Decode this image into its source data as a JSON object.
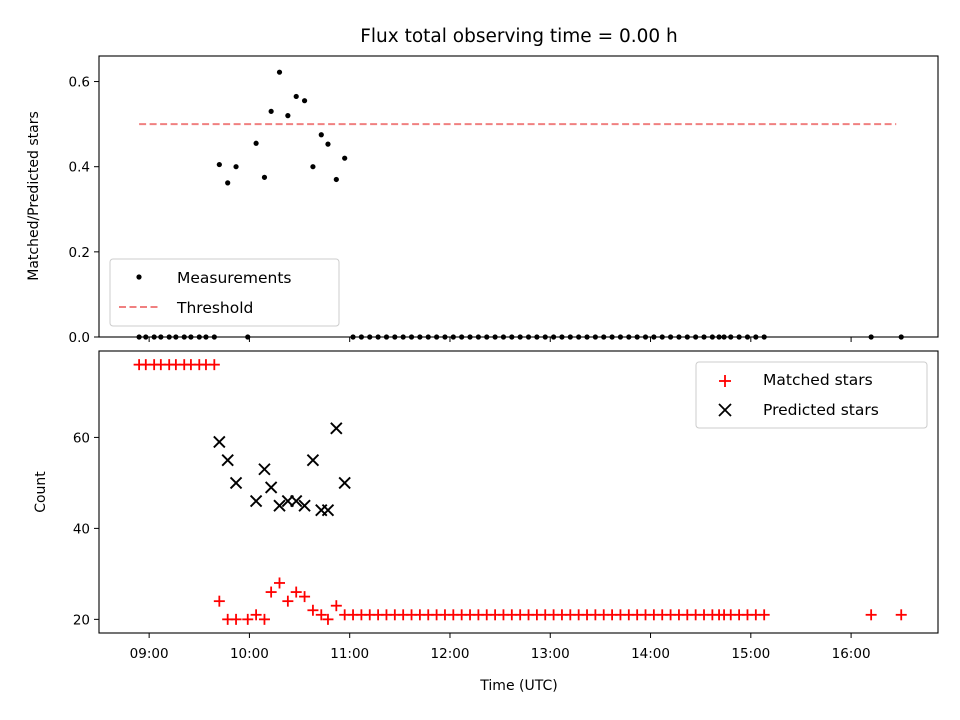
{
  "chart_data": [
    {
      "type": "scatter",
      "title": "Flux total observing time = 0.00 h",
      "xlabel": "",
      "ylabel": "Matched/Predicted stars",
      "xlim": [
        "08:30",
        "16:52"
      ],
      "ylim": [
        0,
        0.66
      ],
      "yticks": [
        "0.0",
        "0.2",
        "0.4",
        "0.6"
      ],
      "grid": false,
      "legend_position": "lower-left",
      "series": [
        {
          "name": "Measurements",
          "kind": "scatter",
          "color": "#000000",
          "points": [
            [
              "08:54",
              0.0
            ],
            [
              "08:58",
              0.0
            ],
            [
              "09:03",
              0.0
            ],
            [
              "09:07",
              0.0
            ],
            [
              "09:12",
              0.0
            ],
            [
              "09:16",
              0.0
            ],
            [
              "09:21",
              0.0
            ],
            [
              "09:25",
              0.0
            ],
            [
              "09:30",
              0.0
            ],
            [
              "09:34",
              0.0
            ],
            [
              "09:39",
              0.0
            ],
            [
              "09:42",
              0.405
            ],
            [
              "09:47",
              0.362
            ],
            [
              "09:52",
              0.4
            ],
            [
              "09:59",
              0.0
            ],
            [
              "10:04",
              0.455
            ],
            [
              "10:09",
              0.375
            ],
            [
              "10:13",
              0.53
            ],
            [
              "10:18",
              0.622
            ],
            [
              "10:23",
              0.52
            ],
            [
              "10:28",
              0.565
            ],
            [
              "10:33",
              0.555
            ],
            [
              "10:38",
              0.4
            ],
            [
              "10:43",
              0.475
            ],
            [
              "10:47",
              0.453
            ],
            [
              "10:52",
              0.37
            ],
            [
              "10:57",
              0.42
            ],
            [
              "11:02",
              0.0
            ],
            [
              "11:07",
              0.0
            ],
            [
              "11:12",
              0.0
            ],
            [
              "11:17",
              0.0
            ],
            [
              "11:22",
              0.0
            ],
            [
              "11:27",
              0.0
            ],
            [
              "11:32",
              0.0
            ],
            [
              "11:37",
              0.0
            ],
            [
              "11:42",
              0.0
            ],
            [
              "11:47",
              0.0
            ],
            [
              "11:52",
              0.0
            ],
            [
              "11:57",
              0.0
            ],
            [
              "12:02",
              0.0
            ],
            [
              "12:07",
              0.0
            ],
            [
              "12:12",
              0.0
            ],
            [
              "12:17",
              0.0
            ],
            [
              "12:22",
              0.0
            ],
            [
              "12:27",
              0.0
            ],
            [
              "12:32",
              0.0
            ],
            [
              "12:37",
              0.0
            ],
            [
              "12:42",
              0.0
            ],
            [
              "12:47",
              0.0
            ],
            [
              "12:52",
              0.0
            ],
            [
              "12:57",
              0.0
            ],
            [
              "13:02",
              0.0
            ],
            [
              "13:07",
              0.0
            ],
            [
              "13:12",
              0.0
            ],
            [
              "13:17",
              0.0
            ],
            [
              "13:22",
              0.0
            ],
            [
              "13:27",
              0.0
            ],
            [
              "13:32",
              0.0
            ],
            [
              "13:37",
              0.0
            ],
            [
              "13:42",
              0.0
            ],
            [
              "13:47",
              0.0
            ],
            [
              "13:52",
              0.0
            ],
            [
              "13:57",
              0.0
            ],
            [
              "14:02",
              0.0
            ],
            [
              "14:07",
              0.0
            ],
            [
              "14:12",
              0.0
            ],
            [
              "14:17",
              0.0
            ],
            [
              "14:22",
              0.0
            ],
            [
              "14:27",
              0.0
            ],
            [
              "14:32",
              0.0
            ],
            [
              "14:37",
              0.0
            ],
            [
              "14:41",
              0.0
            ],
            [
              "14:44",
              0.0
            ],
            [
              "14:48",
              0.0
            ],
            [
              "14:53",
              0.0
            ],
            [
              "14:58",
              0.0
            ],
            [
              "15:03",
              0.0
            ],
            [
              "15:08",
              0.0
            ],
            [
              "16:12",
              0.0
            ],
            [
              "16:30",
              0.0
            ]
          ]
        },
        {
          "name": "Threshold",
          "kind": "line",
          "style": "dashed",
          "color": "#f08080",
          "points": [
            [
              "08:54",
              0.5
            ],
            [
              "16:27",
              0.5
            ]
          ]
        }
      ]
    },
    {
      "type": "scatter",
      "title": "",
      "xlabel": "Time (UTC)",
      "ylabel": "Count",
      "xlim": [
        "08:30",
        "16:52"
      ],
      "ylim": [
        17,
        79
      ],
      "yticks": [
        "20",
        "40",
        "60"
      ],
      "xticks": [
        "09:00",
        "10:00",
        "11:00",
        "12:00",
        "13:00",
        "14:00",
        "15:00",
        "16:00"
      ],
      "grid": false,
      "legend_position": "upper-right",
      "series": [
        {
          "name": "Matched stars",
          "kind": "scatter",
          "marker": "plus",
          "color": "#ff0000",
          "points": [
            [
              "08:54",
              76
            ],
            [
              "08:58",
              76
            ],
            [
              "09:03",
              76
            ],
            [
              "09:07",
              76
            ],
            [
              "09:12",
              76
            ],
            [
              "09:16",
              76
            ],
            [
              "09:21",
              76
            ],
            [
              "09:25",
              76
            ],
            [
              "09:30",
              76
            ],
            [
              "09:34",
              76
            ],
            [
              "09:39",
              76
            ],
            [
              "09:42",
              24
            ],
            [
              "09:47",
              20
            ],
            [
              "09:52",
              20
            ],
            [
              "09:59",
              20
            ],
            [
              "10:04",
              21
            ],
            [
              "10:09",
              20
            ],
            [
              "10:13",
              26
            ],
            [
              "10:18",
              28
            ],
            [
              "10:23",
              24
            ],
            [
              "10:28",
              26
            ],
            [
              "10:33",
              25
            ],
            [
              "10:38",
              22
            ],
            [
              "10:43",
              21
            ],
            [
              "10:47",
              20
            ],
            [
              "10:52",
              23
            ],
            [
              "10:57",
              21
            ],
            [
              "11:02",
              21
            ],
            [
              "11:07",
              21
            ],
            [
              "11:12",
              21
            ],
            [
              "11:17",
              21
            ],
            [
              "11:22",
              21
            ],
            [
              "11:27",
              21
            ],
            [
              "11:32",
              21
            ],
            [
              "11:37",
              21
            ],
            [
              "11:42",
              21
            ],
            [
              "11:47",
              21
            ],
            [
              "11:52",
              21
            ],
            [
              "11:57",
              21
            ],
            [
              "12:02",
              21
            ],
            [
              "12:07",
              21
            ],
            [
              "12:12",
              21
            ],
            [
              "12:17",
              21
            ],
            [
              "12:22",
              21
            ],
            [
              "12:27",
              21
            ],
            [
              "12:32",
              21
            ],
            [
              "12:37",
              21
            ],
            [
              "12:42",
              21
            ],
            [
              "12:47",
              21
            ],
            [
              "12:52",
              21
            ],
            [
              "12:57",
              21
            ],
            [
              "13:02",
              21
            ],
            [
              "13:07",
              21
            ],
            [
              "13:12",
              21
            ],
            [
              "13:17",
              21
            ],
            [
              "13:22",
              21
            ],
            [
              "13:27",
              21
            ],
            [
              "13:32",
              21
            ],
            [
              "13:37",
              21
            ],
            [
              "13:42",
              21
            ],
            [
              "13:47",
              21
            ],
            [
              "13:52",
              21
            ],
            [
              "13:57",
              21
            ],
            [
              "14:02",
              21
            ],
            [
              "14:07",
              21
            ],
            [
              "14:12",
              21
            ],
            [
              "14:17",
              21
            ],
            [
              "14:22",
              21
            ],
            [
              "14:27",
              21
            ],
            [
              "14:32",
              21
            ],
            [
              "14:37",
              21
            ],
            [
              "14:41",
              21
            ],
            [
              "14:44",
              21
            ],
            [
              "14:48",
              21
            ],
            [
              "14:53",
              21
            ],
            [
              "14:58",
              21
            ],
            [
              "15:03",
              21
            ],
            [
              "15:08",
              21
            ],
            [
              "16:12",
              21
            ],
            [
              "16:30",
              21
            ]
          ]
        },
        {
          "name": "Predicted stars",
          "kind": "scatter",
          "marker": "x",
          "color": "#000000",
          "points": [
            [
              "09:42",
              59
            ],
            [
              "09:47",
              55
            ],
            [
              "09:52",
              50
            ],
            [
              "10:04",
              46
            ],
            [
              "10:09",
              53
            ],
            [
              "10:13",
              49
            ],
            [
              "10:18",
              45
            ],
            [
              "10:23",
              46
            ],
            [
              "10:28",
              46
            ],
            [
              "10:33",
              45
            ],
            [
              "10:38",
              55
            ],
            [
              "10:43",
              44
            ],
            [
              "10:47",
              44
            ],
            [
              "10:52",
              62
            ],
            [
              "10:57",
              50
            ]
          ]
        }
      ]
    }
  ]
}
